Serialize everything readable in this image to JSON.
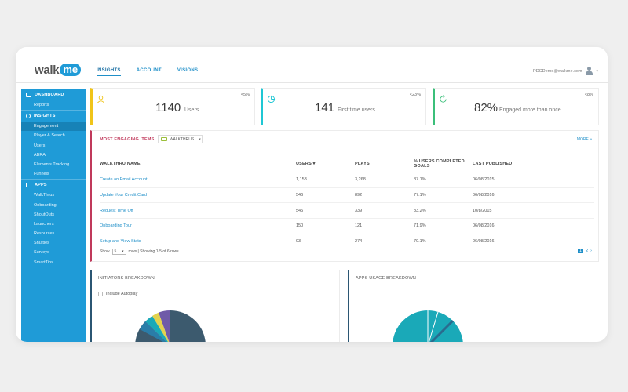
{
  "brand": {
    "walk": "walk",
    "me": "me"
  },
  "topnav": [
    {
      "label": "INSIGHTS",
      "active": true
    },
    {
      "label": "ACCOUNT",
      "active": false
    },
    {
      "label": "VISIONS",
      "active": false
    }
  ],
  "user": {
    "email": "PDCDemo@walkme.com"
  },
  "sidebar": {
    "dashboard": {
      "label": "DASHBOARD",
      "items": [
        "Reports"
      ]
    },
    "insights": {
      "label": "INSIGHTS",
      "items": [
        "Engagement",
        "Player & Search",
        "Users",
        "ABRA",
        "Elements Tracking",
        "Funnels"
      ],
      "active": "Engagement"
    },
    "apps": {
      "label": "APPS",
      "items": [
        "WalkThrus",
        "Onboarding",
        "ShoutOuts",
        "Launchers",
        "Resources",
        "Shuttles",
        "Surveys",
        "SmartTips"
      ]
    }
  },
  "stats": [
    {
      "value": "1140",
      "label": "Users",
      "change": "<5%",
      "color": "#f0c419",
      "icon": "user-icon"
    },
    {
      "value": "141",
      "label": "First time users",
      "change": "<23%",
      "color": "#1fc7d4",
      "icon": "pie-icon"
    },
    {
      "value": "82%",
      "label": "Engaged more than once",
      "change": "<8%",
      "color": "#3bbf7a",
      "icon": "refresh-icon"
    }
  ],
  "engaging": {
    "title": "MOST ENGAGING ITEMS",
    "filter": "WALKTHRUS",
    "more": "MORE »",
    "headers": [
      "WALKTHRU NAME",
      "USERS ▾",
      "PLAYS",
      "% USERS COMPLETED GOALS",
      "LAST PUBLISHED"
    ],
    "rows": [
      [
        "Create an Email Account",
        "1,153",
        "3,268",
        "87.1%",
        "06/08/2015"
      ],
      [
        "Update Your Credit Card",
        "546",
        "892",
        "77.1%",
        "06/08/2016"
      ],
      [
        "Request Time Off",
        "545",
        "339",
        "83.2%",
        "10/8/2015"
      ],
      [
        "Onboarding Tour",
        "150",
        "121",
        "71.9%",
        "06/08/2016"
      ],
      [
        "Setup and View Stats",
        "93",
        "274",
        "70.1%",
        "06/08/2016"
      ]
    ],
    "footer": {
      "show": "Show",
      "show_value": "5",
      "rows_text": "rows | Showing 1-5 of 6 rows"
    },
    "pager": {
      "page1": "1",
      "page2": "2",
      "next": "›"
    }
  },
  "initiators": {
    "title": "INITIATORS BREAKDOWN",
    "checkbox_label": "Include Autoplay"
  },
  "apps_usage": {
    "title": "APPS USAGE BREAKDOWN"
  },
  "colors": {
    "accent": "#1f9bd7",
    "sidebar_active": "#1782b7",
    "engaging": "#c0395b",
    "donut_dark": "#3c5a6e",
    "donut_teal": "#1aa9b8"
  }
}
